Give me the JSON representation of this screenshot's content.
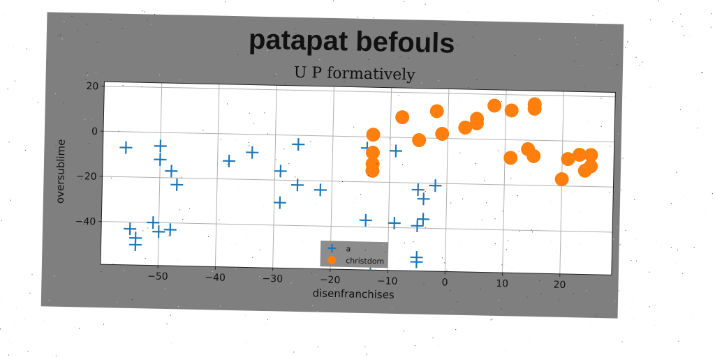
{
  "colors": {
    "figure_background": "#7f7f7f",
    "plot_background": "#ffffff",
    "series_a": "#1f77b4",
    "series_christdom": "#ff7f0e",
    "grid": "#b0b0b0"
  },
  "chart_data": {
    "type": "scatter",
    "title": "patapat befouls",
    "subtitle": "U P formatively",
    "xlabel": "disenfranchises",
    "ylabel": "oversublime",
    "xlim": [
      -60,
      29
    ],
    "ylim": [
      -59,
      22
    ],
    "xticks": [
      -50,
      -40,
      -30,
      -20,
      -10,
      0,
      10,
      20
    ],
    "yticks": [
      20,
      0,
      -20,
      -40
    ],
    "x_tick_labels": [
      "−50",
      "−40",
      "−30",
      "−20",
      "−10",
      "0",
      "10",
      "20"
    ],
    "y_tick_labels": [
      "20",
      "0",
      "−20",
      "−40"
    ],
    "grid": true,
    "legend_position": "bottom-center",
    "series": [
      {
        "name": "a",
        "marker": "plus",
        "points": [
          [
            -56,
            -7
          ],
          [
            -50,
            -6
          ],
          [
            -50,
            -12
          ],
          [
            -48,
            -17
          ],
          [
            -47,
            -23
          ],
          [
            -51,
            -40
          ],
          [
            -55,
            -43
          ],
          [
            -54,
            -47
          ],
          [
            -54,
            -50
          ],
          [
            -50,
            -44
          ],
          [
            -48,
            -43
          ],
          [
            -38,
            -12
          ],
          [
            -34,
            -8
          ],
          [
            -29,
            -16
          ],
          [
            -26,
            -4
          ],
          [
            -26,
            -22
          ],
          [
            -29,
            -30
          ],
          [
            -22,
            -24
          ],
          [
            -14,
            -5
          ],
          [
            -14,
            -37
          ],
          [
            -13,
            -56
          ],
          [
            -16,
            -50
          ],
          [
            -9,
            -38
          ],
          [
            -9,
            -6
          ],
          [
            -5,
            -23
          ],
          [
            -4,
            -27
          ],
          [
            -4,
            -36
          ],
          [
            -5,
            -39
          ],
          [
            -2,
            -21
          ],
          [
            -5,
            -53
          ],
          [
            -5,
            -55
          ]
        ]
      },
      {
        "name": "christdom",
        "marker": "circle",
        "points": [
          [
            -13,
            1
          ],
          [
            -8,
            9
          ],
          [
            -5,
            -1
          ],
          [
            -2,
            12
          ],
          [
            -1,
            2
          ],
          [
            3,
            5
          ],
          [
            5,
            7
          ],
          [
            5,
            9
          ],
          [
            8,
            15
          ],
          [
            11,
            13
          ],
          [
            15,
            14
          ],
          [
            15,
            16
          ],
          [
            -13,
            -7
          ],
          [
            -13,
            -12
          ],
          [
            -13,
            -15
          ],
          [
            11,
            -8
          ],
          [
            14,
            -4
          ],
          [
            15,
            -7
          ],
          [
            20,
            -17
          ],
          [
            21,
            -8
          ],
          [
            23,
            -6
          ],
          [
            24,
            -13
          ],
          [
            25,
            -11
          ],
          [
            25,
            -6
          ]
        ]
      }
    ]
  }
}
